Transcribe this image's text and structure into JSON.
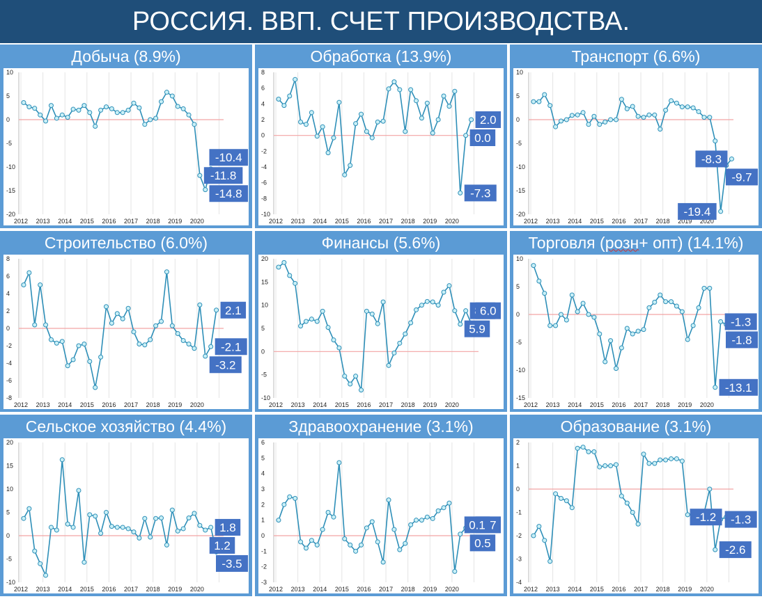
{
  "title": "РОССИЯ. ВВП. СЧЕТ ПРОИЗВОДСТВА.",
  "colors": {
    "header_bg": "#1f4e79",
    "panel_bg": "#5b9bd5",
    "line": "#2e8fb8",
    "marker_fill": "#c9f0f7",
    "zero_line": "#f2a3a3",
    "label_bg": "#4472c4"
  },
  "chart_data": [
    {
      "type": "line",
      "title": "Добыча (8.9%)",
      "ylim": [
        -20,
        10
      ],
      "yticks": [
        -20,
        -15,
        -10,
        -5,
        0,
        5,
        10
      ],
      "x_labels": [
        "2012",
        "2013",
        "2014",
        "2015",
        "2016",
        "2017",
        "2018",
        "2019",
        "2020"
      ],
      "values": [
        3.6,
        2.7,
        2.4,
        1.0,
        -0.3,
        3.0,
        0.3,
        1.0,
        0.5,
        2.2,
        2.0,
        3.0,
        1.5,
        -1.4,
        2.0,
        2.7,
        2.3,
        1.5,
        1.5,
        2.0,
        3.5,
        2.5,
        -1.0,
        0.0,
        0.3,
        3.8,
        5.8,
        5.0,
        2.8,
        2.3,
        1.0,
        -1.0,
        -11.8,
        -14.8,
        -10.4
      ],
      "data_labels": [
        {
          "text": "-11.8",
          "i": 32
        },
        {
          "text": "-14.8",
          "i": 33
        },
        {
          "text": "-10.4",
          "i": 34
        }
      ]
    },
    {
      "type": "line",
      "title": "Обработка (13.9%)",
      "ylim": [
        -10,
        8
      ],
      "yticks": [
        -10,
        -8,
        -6,
        -4,
        -2,
        0,
        2,
        4,
        6,
        8
      ],
      "x_labels": [
        "2012",
        "2013",
        "2014",
        "2015",
        "2016",
        "2017",
        "2018",
        "2019",
        "2020"
      ],
      "values": [
        4.6,
        3.8,
        5.0,
        7.1,
        1.7,
        1.4,
        2.9,
        -0.1,
        1.1,
        -2.2,
        -0.3,
        4.2,
        -5.0,
        -3.8,
        1.5,
        2.7,
        0.5,
        -0.3,
        1.7,
        1.8,
        5.9,
        6.8,
        5.8,
        0.5,
        5.8,
        4.4,
        2.2,
        4.1,
        0.3,
        2.0,
        5.0,
        3.7,
        5.6,
        -7.3,
        0.0,
        2.0
      ],
      "data_labels": [
        {
          "text": "2.0",
          "i": 35
        },
        {
          "text": "0.0",
          "i": 34
        },
        {
          "text": "-7.3",
          "i": 33
        }
      ]
    },
    {
      "type": "line",
      "title": "Транспорт (6.6%)",
      "ylim": [
        -20,
        10
      ],
      "yticks": [
        -20,
        -15,
        -10,
        -5,
        0,
        5,
        10
      ],
      "x_labels": [
        "2012",
        "2013",
        "2014",
        "2015",
        "2016",
        "2017",
        "2018",
        "2019",
        "2020"
      ],
      "values": [
        3.8,
        3.8,
        5.3,
        3.0,
        -1.5,
        -0.3,
        0.0,
        0.9,
        1.0,
        1.5,
        -1.0,
        0.7,
        -1.0,
        -0.5,
        0.0,
        0.0,
        4.3,
        2.3,
        2.8,
        0.7,
        0.5,
        1.0,
        1.0,
        -2.0,
        2.0,
        4.0,
        3.5,
        2.7,
        2.7,
        2.5,
        1.7,
        0.5,
        0.5,
        -4.5,
        -19.4,
        -9.7,
        -8.3
      ],
      "data_labels": [
        {
          "text": "-8.3",
          "i": 36
        },
        {
          "text": "-9.7",
          "i": 35
        },
        {
          "text": "-19.4",
          "i": 34
        }
      ]
    },
    {
      "type": "line",
      "title": "Строительство (6.0%)",
      "ylim": [
        -8,
        8
      ],
      "yticks": [
        -8,
        -6,
        -4,
        -2,
        0,
        2,
        4,
        6,
        8
      ],
      "x_labels": [
        "2012",
        "2013",
        "2014",
        "2015",
        "2016",
        "2017",
        "2018",
        "2019",
        "2020"
      ],
      "values": [
        5.0,
        6.4,
        0.4,
        5.0,
        0.4,
        -1.3,
        -1.7,
        -1.5,
        -4.3,
        -3.6,
        -2.0,
        -1.8,
        -3.8,
        -6.8,
        -3.3,
        2.5,
        0.6,
        1.7,
        1.1,
        2.3,
        -0.4,
        -1.8,
        -1.9,
        -1.3,
        0.3,
        0.8,
        6.5,
        0.3,
        -0.6,
        -1.4,
        -1.8,
        -2.3,
        2.7,
        -3.2,
        -2.1,
        2.1
      ],
      "data_labels": [
        {
          "text": "2.1",
          "i": 35
        },
        {
          "text": "-2.1",
          "i": 34
        },
        {
          "text": "-3.2",
          "i": 33
        }
      ]
    },
    {
      "type": "line",
      "title": "Финансы (5.6%)",
      "ylim": [
        -10,
        20
      ],
      "yticks": [
        -10,
        -5,
        0,
        5,
        10,
        15,
        20
      ],
      "x_labels": [
        "2012",
        "2013",
        "2014",
        "2015",
        "2016",
        "2017",
        "2018",
        "2019",
        "2020"
      ],
      "values": [
        18.2,
        19.2,
        16.4,
        14.7,
        5.5,
        6.5,
        7.0,
        6.5,
        8.7,
        5.2,
        2.5,
        0.8,
        -5.3,
        -7.0,
        -5.3,
        -8.3,
        8.7,
        8.1,
        6.0,
        10.7,
        -3.0,
        -0.3,
        1.8,
        3.8,
        6.2,
        9.0,
        10.0,
        10.8,
        10.7,
        10.0,
        12.8,
        14.2,
        8.8,
        5.9,
        8.8,
        6.0
      ],
      "data_labels": [
        {
          "text": "8.8",
          "i": 34
        },
        {
          "text": "5.9",
          "i": 33
        },
        {
          "text": "6.0",
          "i": 35
        }
      ]
    },
    {
      "type": "line",
      "title": "Торговля (розн + опт) (14.1%)",
      "title_parts": [
        "Торговля (",
        "розн",
        "+ опт) (14.1%)"
      ],
      "ylim": [
        -15,
        10
      ],
      "yticks": [
        -15,
        -10,
        -5,
        0,
        5,
        10
      ],
      "x_labels": [
        "2012",
        "2013",
        "2014",
        "2015",
        "2016",
        "2017",
        "2018",
        "2019",
        "2020"
      ],
      "values": [
        8.8,
        6.0,
        3.8,
        -2.0,
        -2.0,
        0.0,
        -1.0,
        3.5,
        0.5,
        2.0,
        0.0,
        -0.5,
        -3.5,
        -8.5,
        -4.7,
        -9.7,
        -6.0,
        -2.5,
        -3.5,
        -3.0,
        -2.7,
        1.2,
        2.2,
        3.5,
        2.3,
        2.3,
        1.5,
        0.5,
        -4.5,
        -2.0,
        1.2,
        4.7,
        4.7,
        -13.1,
        -1.3,
        -1.8
      ],
      "data_labels": [
        {
          "text": "-1.3",
          "i": 34
        },
        {
          "text": "-1.8",
          "i": 35
        },
        {
          "text": "-13.1",
          "i": 33
        }
      ]
    },
    {
      "type": "line",
      "title": "Сельское хозяйство (4.4%)",
      "ylim": [
        -10,
        20
      ],
      "yticks": [
        -10,
        -5,
        0,
        5,
        10,
        15,
        20
      ],
      "x_labels": [
        "2012",
        "2013",
        "2014",
        "2015",
        "2016",
        "2017",
        "2018",
        "2019",
        "2020"
      ],
      "values": [
        3.7,
        5.8,
        -3.3,
        -6.0,
        -8.5,
        1.8,
        1.2,
        16.3,
        2.5,
        1.8,
        9.7,
        -5.7,
        4.5,
        4.2,
        0.5,
        5.0,
        2.0,
        1.8,
        1.8,
        1.5,
        0.8,
        -0.5,
        3.7,
        -0.3,
        3.7,
        3.8,
        -2.0,
        5.5,
        1.0,
        1.5,
        3.8,
        4.8,
        2.2,
        1.2,
        1.8,
        -3.5
      ],
      "data_labels": [
        {
          "text": "1.8",
          "i": 34
        },
        {
          "text": "1.2",
          "i": 33
        },
        {
          "text": "-3.5",
          "i": 35
        }
      ]
    },
    {
      "type": "line",
      "title": "Здравоохранение (3.1%)",
      "ylim": [
        -3,
        6
      ],
      "yticks": [
        -3,
        -2,
        -1,
        0,
        1,
        2,
        3,
        4,
        5,
        6
      ],
      "x_labels": [
        "2012",
        "2013",
        "2014",
        "2015",
        "2016",
        "2017",
        "2018",
        "2019",
        "2020"
      ],
      "values": [
        1.0,
        2.0,
        2.5,
        2.4,
        -0.4,
        -0.8,
        -0.3,
        -0.6,
        0.4,
        1.5,
        1.2,
        4.7,
        -0.2,
        -0.6,
        -1.0,
        -0.6,
        0.5,
        0.9,
        -0.4,
        -1.7,
        2.3,
        0.4,
        -0.9,
        -0.5,
        0.7,
        1.0,
        1.0,
        1.2,
        1.1,
        1.6,
        1.8,
        2.1,
        -2.3,
        0.1,
        0.5,
        0.7
      ],
      "data_labels": [
        {
          "text": "0.7",
          "i": 35
        },
        {
          "text": "0.5",
          "i": 34
        },
        {
          "text": "0.1",
          "i": 33
        }
      ]
    },
    {
      "type": "line",
      "title": "Образование (3.1%)",
      "ylim": [
        -4,
        2
      ],
      "yticks": [
        -4,
        -3,
        -2,
        -1,
        0,
        1,
        2
      ],
      "x_labels": [
        "2012",
        "2013",
        "2014",
        "2015",
        "2016",
        "2017",
        "2018",
        "2019",
        "2020"
      ],
      "values": [
        -2.0,
        -1.6,
        -2.2,
        -3.1,
        -0.2,
        -0.4,
        -0.5,
        -0.8,
        1.75,
        1.8,
        1.6,
        1.6,
        0.95,
        1.0,
        1.0,
        1.05,
        -0.3,
        -0.6,
        -1.0,
        -1.5,
        1.5,
        1.1,
        1.1,
        1.25,
        1.25,
        1.3,
        1.3,
        1.2,
        -1.1,
        -1.05,
        -1.1,
        -1.0,
        0.0,
        -2.6,
        -1.3,
        -1.2
      ],
      "data_labels": [
        {
          "text": "-1.2",
          "i": 35
        },
        {
          "text": "-1.3",
          "i": 34
        },
        {
          "text": "-2.6",
          "i": 33
        }
      ]
    }
  ]
}
